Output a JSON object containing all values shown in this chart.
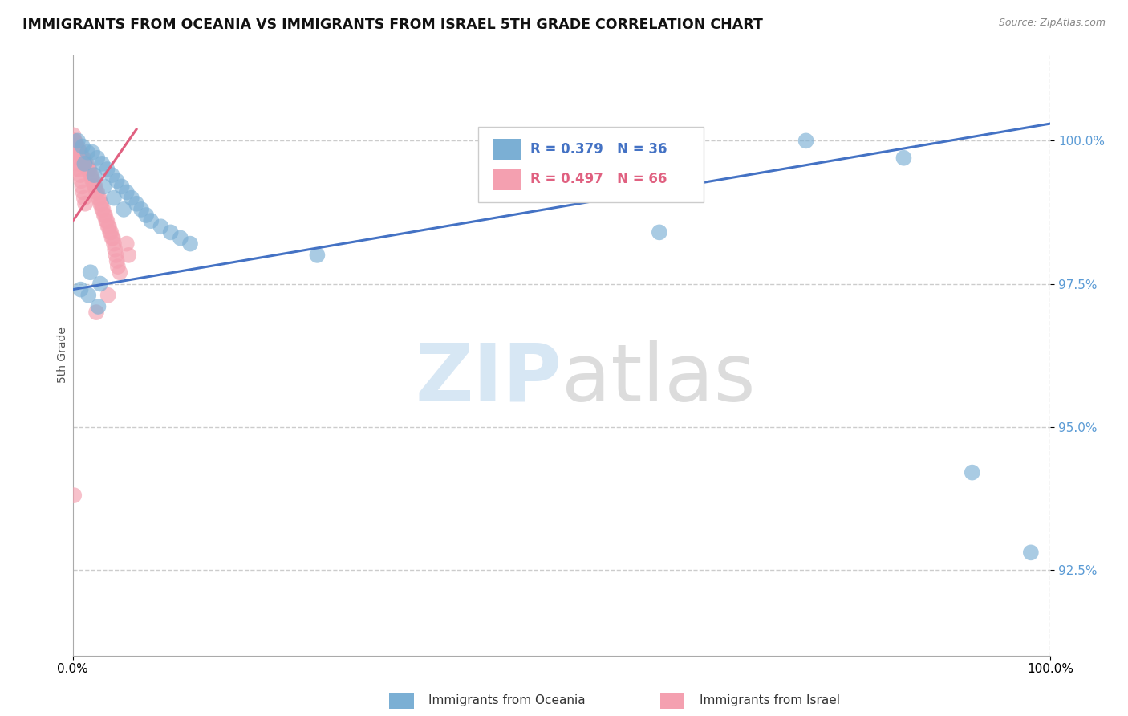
{
  "title": "IMMIGRANTS FROM OCEANIA VS IMMIGRANTS FROM ISRAEL 5TH GRADE CORRELATION CHART",
  "source_text": "Source: ZipAtlas.com",
  "ylabel": "5th Grade",
  "y_tick_values": [
    92.5,
    95.0,
    97.5,
    100.0
  ],
  "x_range": [
    0.0,
    100.0
  ],
  "y_range": [
    91.0,
    101.5
  ],
  "legend_label_blue": "Immigrants from Oceania",
  "legend_label_pink": "Immigrants from Israel",
  "legend_R_blue": "R = 0.379",
  "legend_N_blue": "N = 36",
  "legend_R_pink": "R = 0.497",
  "legend_N_pink": "N = 66",
  "color_blue": "#7BAFD4",
  "color_pink": "#F4A0B0",
  "color_blue_line": "#4472C4",
  "color_pink_line": "#E06080",
  "blue_line_x": [
    0,
    100
  ],
  "blue_line_y": [
    97.4,
    100.3
  ],
  "pink_line_x": [
    0,
    6.5
  ],
  "pink_line_y": [
    98.6,
    100.2
  ],
  "blue_x": [
    0.5,
    1.0,
    1.5,
    2.0,
    2.5,
    3.0,
    3.5,
    4.0,
    4.5,
    5.0,
    5.5,
    6.0,
    6.5,
    7.0,
    7.5,
    8.0,
    9.0,
    10.0,
    11.0,
    12.0,
    1.2,
    2.2,
    3.2,
    4.2,
    5.2,
    1.8,
    2.8,
    0.8,
    1.6,
    2.6,
    25.0,
    60.0,
    75.0,
    85.0,
    92.0,
    98.0
  ],
  "blue_y": [
    100.0,
    99.9,
    99.8,
    99.8,
    99.7,
    99.6,
    99.5,
    99.4,
    99.3,
    99.2,
    99.1,
    99.0,
    98.9,
    98.8,
    98.7,
    98.6,
    98.5,
    98.4,
    98.3,
    98.2,
    99.6,
    99.4,
    99.2,
    99.0,
    98.8,
    97.7,
    97.5,
    97.4,
    97.3,
    97.1,
    98.0,
    98.4,
    100.0,
    99.7,
    94.2,
    92.8
  ],
  "pink_x": [
    0.1,
    0.2,
    0.3,
    0.4,
    0.5,
    0.6,
    0.7,
    0.8,
    0.9,
    1.0,
    1.1,
    1.2,
    1.3,
    1.4,
    1.5,
    1.6,
    1.7,
    1.8,
    1.9,
    2.0,
    2.1,
    2.2,
    2.3,
    2.4,
    2.5,
    2.6,
    2.7,
    2.8,
    2.9,
    3.0,
    3.1,
    3.2,
    3.3,
    3.4,
    3.5,
    3.6,
    3.7,
    3.8,
    3.9,
    4.0,
    4.1,
    4.2,
    4.3,
    4.4,
    4.5,
    4.6,
    0.15,
    0.25,
    0.35,
    0.45,
    0.55,
    0.65,
    0.75,
    0.85,
    0.95,
    1.05,
    1.15,
    1.25,
    0.05,
    5.5,
    5.7,
    4.8,
    3.6,
    2.4,
    0.12,
    0.22
  ],
  "pink_y": [
    100.0,
    100.0,
    99.9,
    99.9,
    99.9,
    99.8,
    99.8,
    99.8,
    99.7,
    99.7,
    99.7,
    99.6,
    99.6,
    99.6,
    99.5,
    99.5,
    99.5,
    99.4,
    99.4,
    99.3,
    99.3,
    99.2,
    99.2,
    99.1,
    99.1,
    99.0,
    99.0,
    98.9,
    98.9,
    98.8,
    98.8,
    98.7,
    98.7,
    98.6,
    98.6,
    98.5,
    98.5,
    98.4,
    98.4,
    98.3,
    98.3,
    98.2,
    98.1,
    98.0,
    97.9,
    97.8,
    100.0,
    99.9,
    99.8,
    99.7,
    99.6,
    99.5,
    99.4,
    99.3,
    99.2,
    99.1,
    99.0,
    98.9,
    100.1,
    98.2,
    98.0,
    97.7,
    97.3,
    97.0,
    93.8,
    99.5
  ]
}
